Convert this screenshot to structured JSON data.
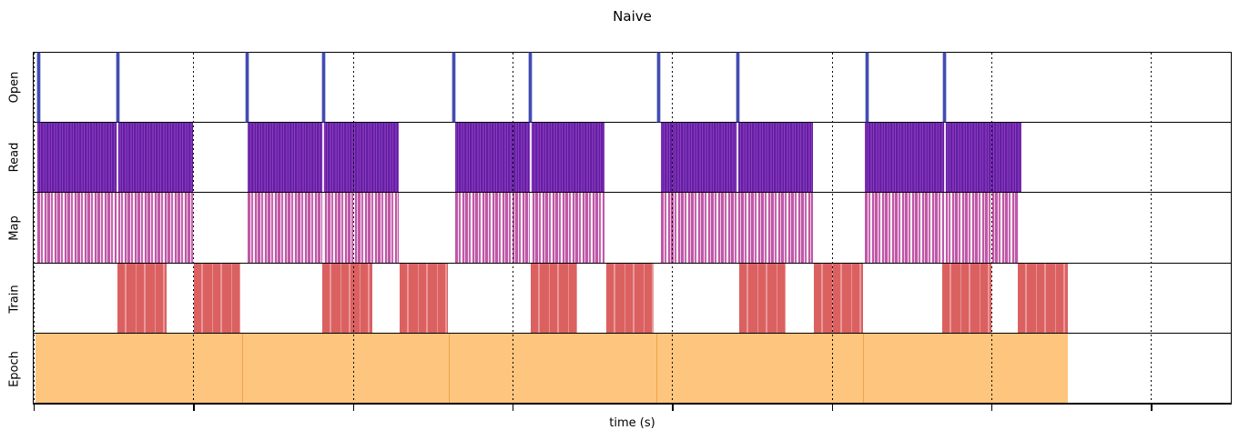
{
  "chart_data": {
    "type": "timeline",
    "title": "Naive",
    "xlabel": "time (s)",
    "x_axis": {
      "tick_labels": [],
      "gridlines_pct": [
        0,
        13.33,
        26.67,
        40,
        53.33,
        66.67,
        80,
        93.33
      ],
      "grid_style": "dotted",
      "note": "no numeric tick labels visible; positions given as % of axis width"
    },
    "colors": {
      "open": "#434CB2",
      "read": "#7B2EB4",
      "map": "#C05CA8",
      "train": "#DC6262",
      "epoch": "#FDC57E",
      "epoch_edge": "#F2A445",
      "grid": "#000000",
      "background": "#FFFFFF"
    },
    "tracks": [
      {
        "label": "Open",
        "style": "open",
        "events_pct": [
          0.4,
          7.0,
          17.8,
          24.2,
          35.1,
          41.5,
          52.2,
          58.8,
          69.6,
          76.1
        ]
      },
      {
        "label": "Read",
        "style": "read",
        "intervals_pct": [
          [
            0.3,
            13.3
          ],
          [
            17.9,
            30.5
          ],
          [
            35.2,
            47.7
          ],
          [
            52.4,
            65.1
          ],
          [
            69.4,
            82.5
          ]
        ],
        "gaps_pct": [
          7.0,
          24.2,
          41.5,
          58.8,
          76.1
        ]
      },
      {
        "label": "Map",
        "style": "map",
        "intervals_pct": [
          [
            0.3,
            13.3
          ],
          [
            17.9,
            30.5
          ],
          [
            35.2,
            47.7
          ],
          [
            52.4,
            65.1
          ],
          [
            69.4,
            82.3
          ]
        ],
        "gaps_pct": [
          7.0,
          24.2,
          41.5,
          58.8,
          76.1
        ]
      },
      {
        "label": "Train",
        "style": "train",
        "intervals_pct": [
          [
            7.0,
            11.1
          ],
          [
            13.4,
            17.3
          ],
          [
            24.1,
            28.3
          ],
          [
            30.6,
            34.6
          ],
          [
            41.5,
            45.4
          ],
          [
            47.8,
            51.8
          ],
          [
            58.9,
            62.8
          ],
          [
            65.2,
            69.3
          ],
          [
            75.9,
            80.0
          ],
          [
            82.2,
            86.4
          ]
        ]
      },
      {
        "label": "Epoch",
        "style": "epoch",
        "intervals_pct": [
          [
            0.15,
            17.4
          ],
          [
            17.4,
            34.7
          ],
          [
            34.7,
            52.0
          ],
          [
            52.0,
            69.3
          ],
          [
            69.3,
            86.4
          ]
        ]
      }
    ]
  }
}
